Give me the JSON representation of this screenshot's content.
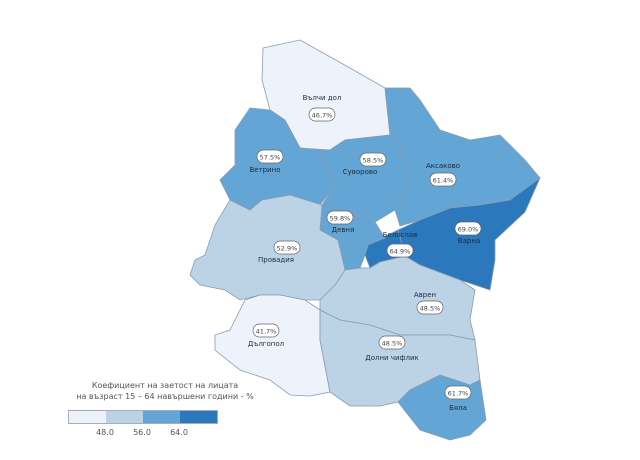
{
  "legend": {
    "title_line1": "Коефициент на заетост на лицата",
    "title_line2": "на възраст 15 – 64 навършени години - %",
    "thresholds": [
      "48.0",
      "56.0",
      "64.0"
    ],
    "colors": [
      "#eef2fb",
      "#bcd3e6",
      "#63a6d5",
      "#2b78bd"
    ]
  },
  "regions": [
    {
      "name": "Вълчи дол",
      "value": "46.7%"
    },
    {
      "name": "Ветрино",
      "value": "57.5%"
    },
    {
      "name": "Суворово",
      "value": "58.5%"
    },
    {
      "name": "Аксаково",
      "value": "61.4%"
    },
    {
      "name": "Варна",
      "value": "69.0%"
    },
    {
      "name": "Белослав",
      "value": "64.9%"
    },
    {
      "name": "Девня",
      "value": "59.8%"
    },
    {
      "name": "Провадия",
      "value": "52.9%"
    },
    {
      "name": "Аврен",
      "value": "48.5%"
    },
    {
      "name": "Дългопол",
      "value": "41.7%"
    },
    {
      "name": "Долни чифлик",
      "value": "48.5%"
    },
    {
      "name": "Бяла",
      "value": "61.7%"
    }
  ]
}
